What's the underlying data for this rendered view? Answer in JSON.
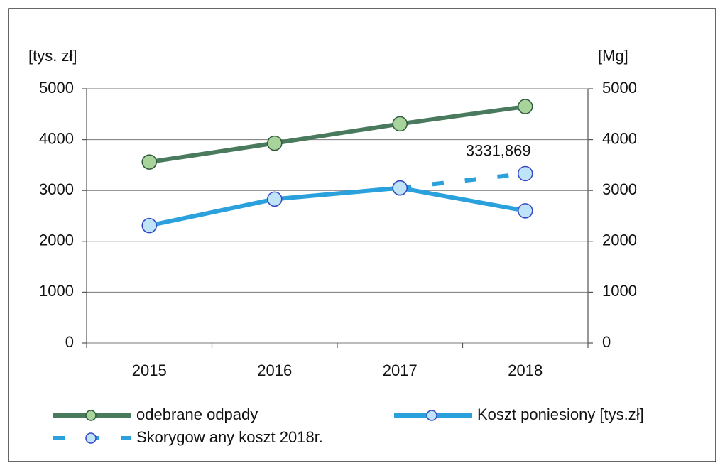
{
  "chart_data": {
    "type": "line",
    "y_label": "[tys. zł]",
    "y2_label": "[Mg]",
    "categories": [
      "2015",
      "2016",
      "2017",
      "2018"
    ],
    "series": [
      {
        "name": "odebrane odpady",
        "color": "#4a7a5e",
        "marker_fill": "#a8d49c",
        "marker_stroke": "#2f5a3c",
        "axis": "y2",
        "values": [
          3560,
          3930,
          4310,
          4650
        ]
      },
      {
        "name": "Koszt poniesiony [tys.zł]",
        "color": "#2aa1dc",
        "marker_fill": "#bfe4f7",
        "marker_stroke": "#3446c4",
        "values": [
          2310,
          2830,
          3050,
          2600
        ]
      },
      {
        "name": "Skorygow any koszt 2018r.",
        "color": "#2aa1dc",
        "marker_fill": "#bfe4f7",
        "marker_stroke": "#3446c4",
        "dashed": true,
        "values": [
          null,
          null,
          3050,
          3331.869
        ],
        "value_labels": [
          null,
          null,
          null,
          "3331,869"
        ]
      }
    ],
    "ylim": [
      0,
      5000
    ],
    "yticks": [
      0,
      1000,
      2000,
      3000,
      4000,
      5000
    ],
    "y2lim": [
      0,
      5000
    ],
    "y2ticks": [
      0,
      1000,
      2000,
      3000,
      4000,
      5000
    ],
    "grid": true
  }
}
